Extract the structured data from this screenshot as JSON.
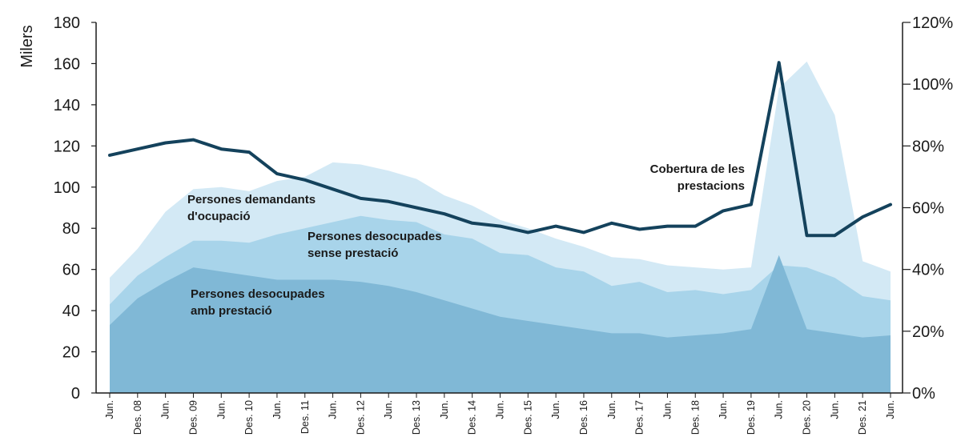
{
  "chart_data": {
    "type": "area",
    "ylabel": "Milers",
    "ylim": [
      0,
      180
    ],
    "yticks": [
      "0",
      "20",
      "40",
      "60",
      "80",
      "100",
      "120",
      "140",
      "160",
      "180"
    ],
    "y2lim": [
      0,
      120
    ],
    "y2ticks": [
      "0%",
      "20%",
      "40%",
      "60%",
      "80%",
      "100%",
      "120%"
    ],
    "categories": [
      "Jun.",
      "Des. 08",
      "Jun.",
      "Des. 09",
      "Jun.",
      "Des. 10",
      "Jun.",
      "Des. 11",
      "Jun.",
      "Des. 12",
      "Jun.",
      "Des. 13",
      "Jun.",
      "Des. 14",
      "Jun.",
      "Des. 15",
      "Jun.",
      "Des. 16",
      "Jun.",
      "Des. 17",
      "Jun.",
      "Des. 18",
      "Jun.",
      "Des. 19",
      "Jun.",
      "Des. 20",
      "Jun.",
      "Des. 21",
      "Jun."
    ],
    "series": [
      {
        "name": "Persones demandants d'ocupació",
        "type": "area",
        "color": "#d3e9f5",
        "values": [
          56,
          70,
          88,
          99,
          100,
          98,
          103,
          105,
          112,
          111,
          108,
          104,
          96,
          91,
          84,
          80,
          75,
          71,
          66,
          65,
          62,
          61,
          60,
          61,
          148,
          161,
          135,
          64,
          59
        ]
      },
      {
        "name": "Persones desocupades sense prestació",
        "type": "area",
        "color": "#a8d4ea",
        "values": [
          43,
          57,
          66,
          74,
          74,
          73,
          77,
          80,
          83,
          86,
          84,
          83,
          77,
          75,
          68,
          67,
          61,
          59,
          52,
          54,
          49,
          50,
          48,
          50,
          62,
          61,
          56,
          47,
          45
        ]
      },
      {
        "name": "Persones desocupades amb prestació",
        "type": "area",
        "color": "#80b8d6",
        "values": [
          33,
          46,
          54,
          61,
          59,
          57,
          55,
          55,
          55,
          54,
          52,
          49,
          45,
          41,
          37,
          35,
          33,
          31,
          29,
          29,
          27,
          28,
          29,
          31,
          67,
          31,
          29,
          27,
          28
        ]
      },
      {
        "name": "Cobertura de les prestacions",
        "type": "line",
        "axis": "right",
        "color": "#14425c",
        "values": [
          77,
          79,
          81,
          82,
          79,
          78,
          71,
          69,
          66,
          63,
          62,
          60,
          58,
          55,
          54,
          52,
          54,
          52,
          55,
          53,
          54,
          54,
          59,
          61,
          107,
          51,
          51,
          57,
          61
        ]
      }
    ],
    "annotations": [
      "Persones demandants\nd'ocupació",
      "Persones desocupades\nsense prestació",
      "Persones desocupades\namb prestació",
      "Cobertura de les\nprestacions"
    ]
  }
}
